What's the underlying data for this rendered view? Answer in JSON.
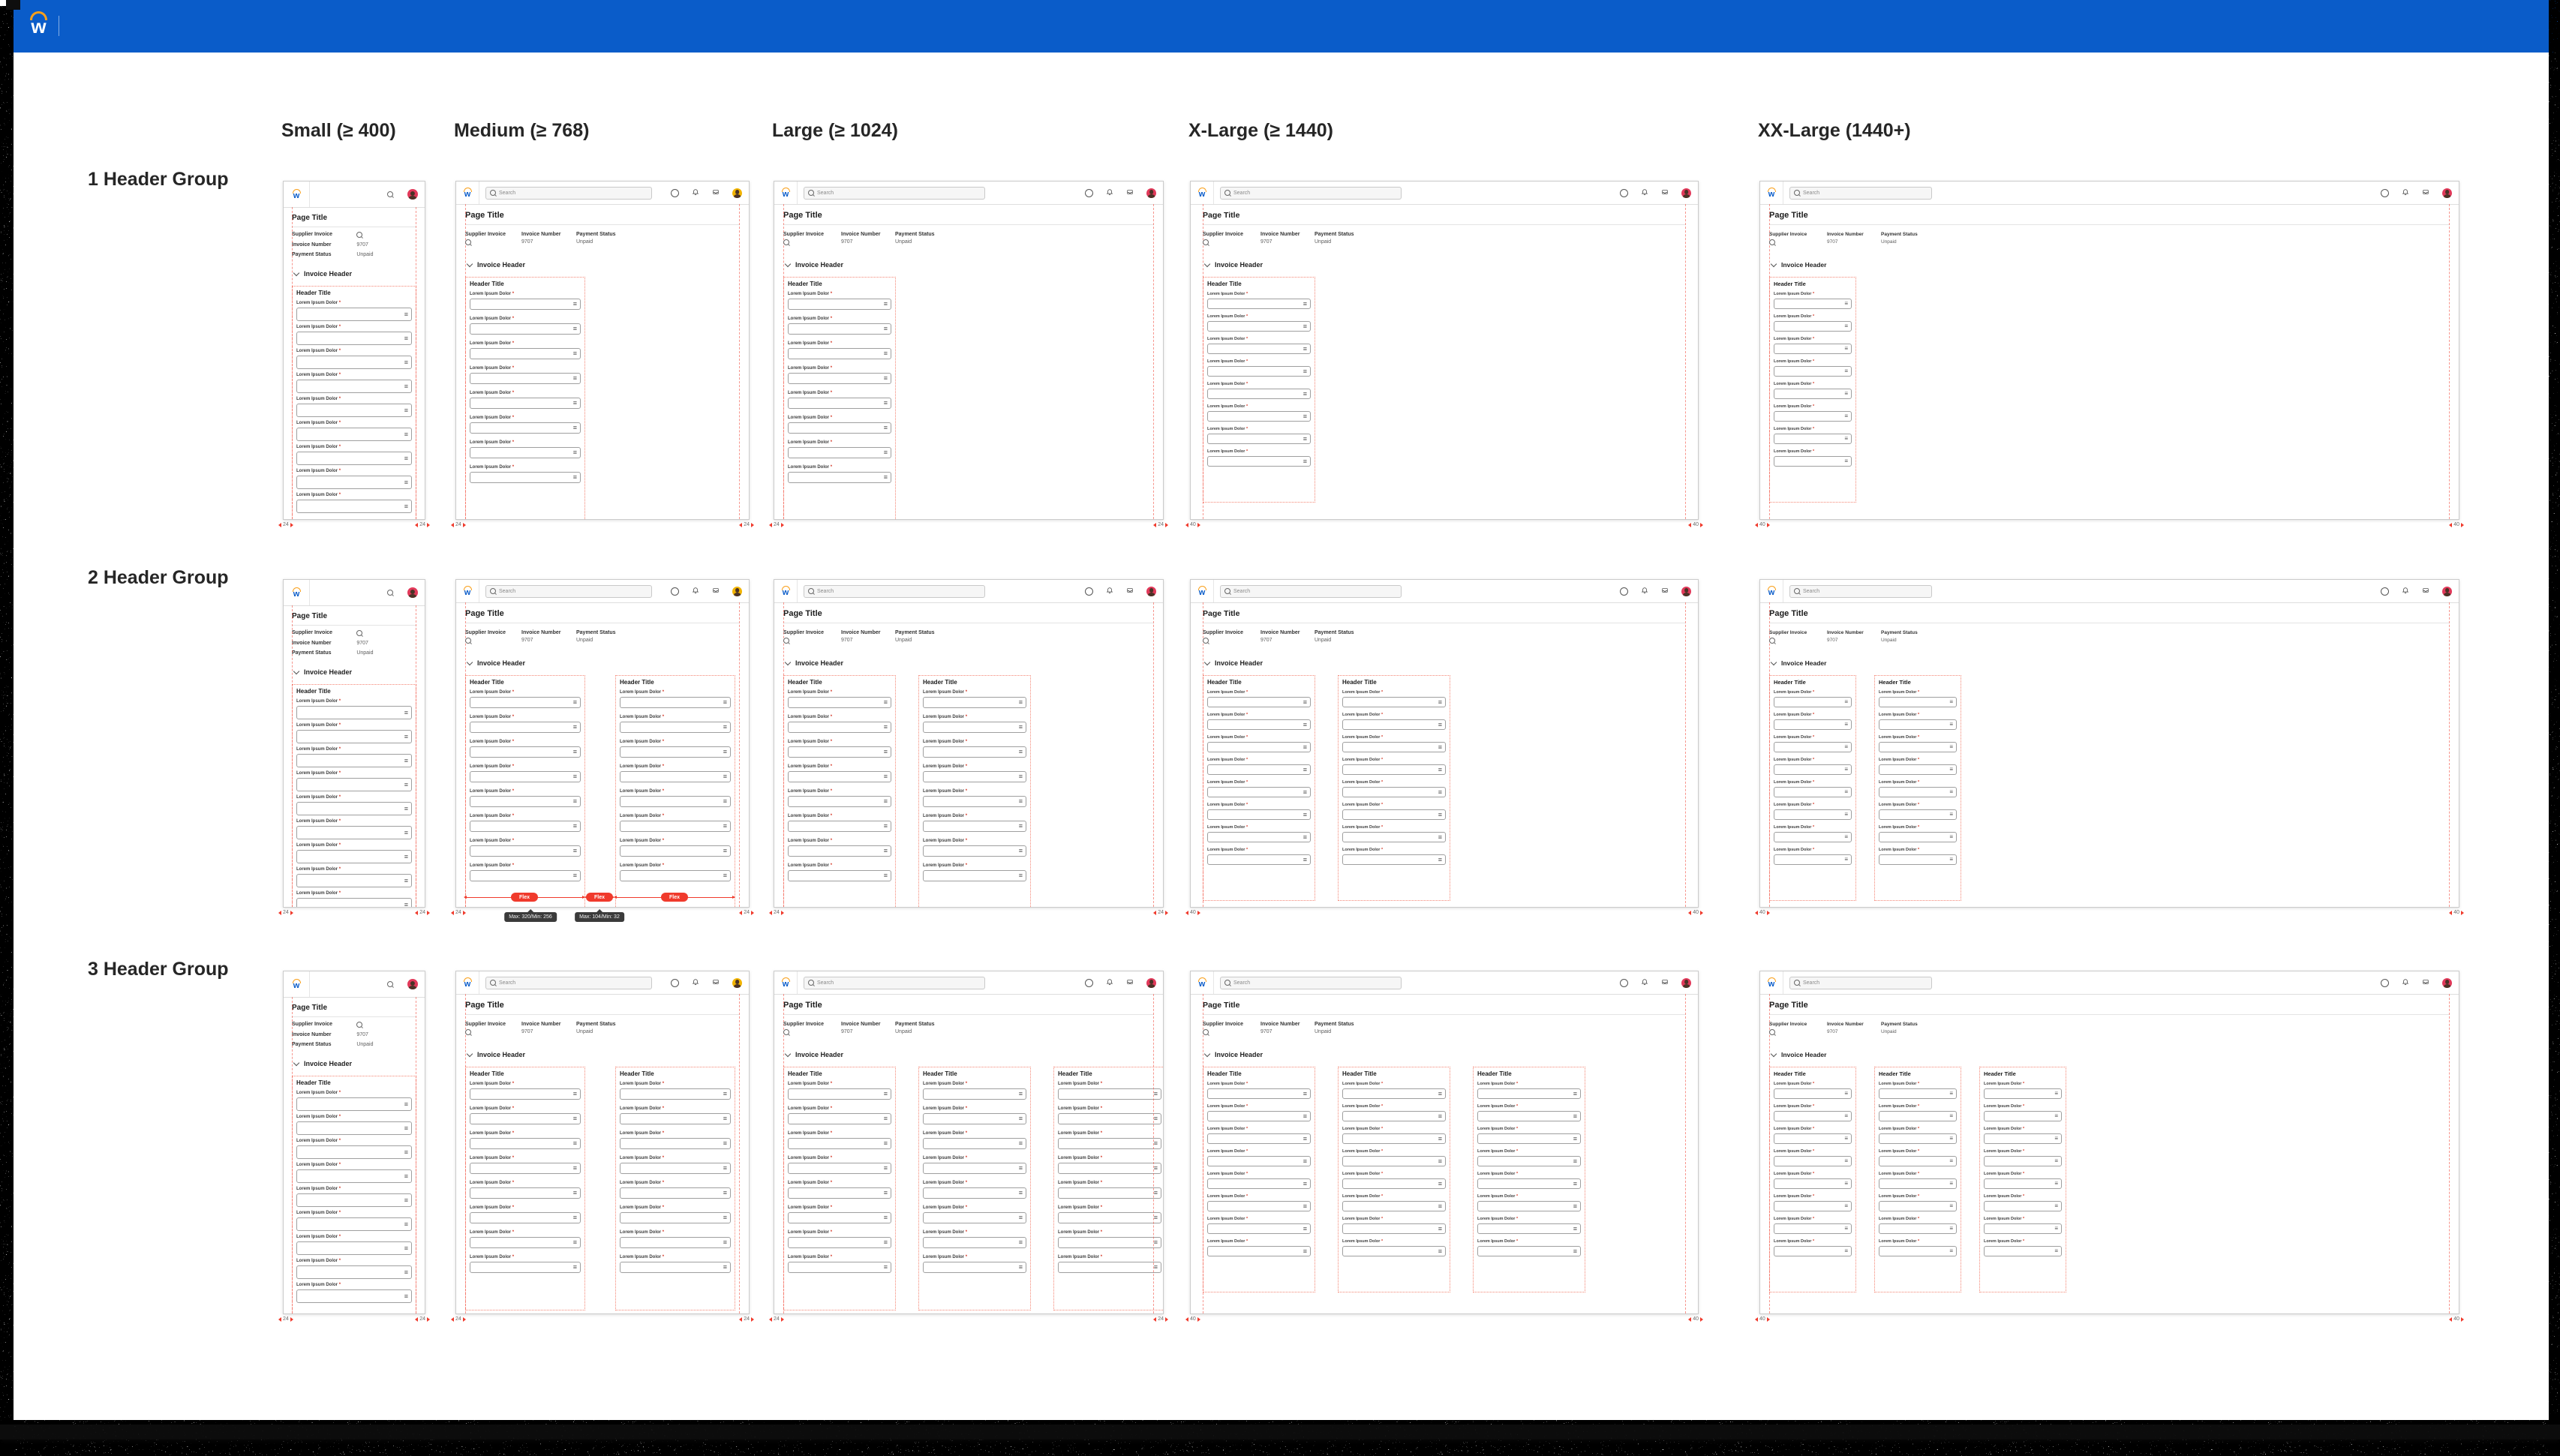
{
  "app_bar": {
    "logo_letter": "w"
  },
  "column_headers": [
    "Small (≥ 400)",
    "Medium (≥ 768)",
    "Large (≥ 1024)",
    "X-Large (≥ 1440)",
    "XX-Large (1440+)"
  ],
  "row_labels": [
    "1 Header Group",
    "2 Header Group",
    "3 Header Group"
  ],
  "mockup": {
    "logo_letter": "w",
    "search_placeholder": "Search",
    "page_title": "Page Title",
    "meta_fields": [
      {
        "label": "Supplier Invoice",
        "value": "",
        "value_icon": "search-icon"
      },
      {
        "label": "Invoice Number",
        "value": "9707"
      },
      {
        "label": "Payment Status",
        "value": "Unpaid"
      }
    ],
    "section_title": "Invoice Header",
    "group_title": "Header Title",
    "field_label": "Lorem Ipsum Dolor",
    "required_marker": "*"
  },
  "annotations": {
    "margin_small_breakpoints": "24",
    "margin_large_breakpoints": "40",
    "flex_pill_label": "Flex",
    "column_tooltip": "Max: 320/Min: 256",
    "gutter_tooltip": "Max: 104/Min: 32"
  },
  "icons": {
    "field_menu_glyph": "≡"
  },
  "colors": {
    "app_bar_blue": "#0a5cc9",
    "logo_orange": "#f9a01b",
    "annotation_red": "#f03a2c",
    "tooltip_bg": "#3b3b3b",
    "avatar_red": "#e2395a",
    "avatar_yellow": "#f2b400",
    "required_red": "#d43a2a"
  }
}
